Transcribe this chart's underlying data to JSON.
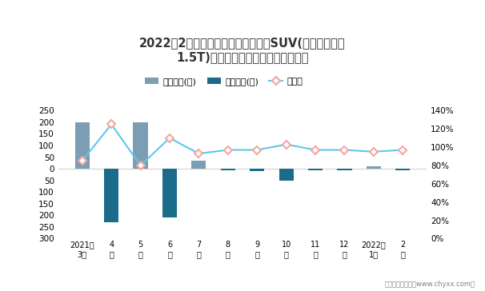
{
  "title": "2022年2月雪佛兰探界者旗下最畅销SUV(雪佛兰探界者\n1.5T)近一年库存情况及产销率统计图",
  "categories": [
    "2021年\n3月",
    "4\n月",
    "5\n月",
    "6\n月",
    "7\n月",
    "8\n月",
    "9\n月",
    "10\n月",
    "11\n月",
    "12\n月",
    "2022年\n1月",
    "2\n月"
  ],
  "jiyal_values": [
    200,
    0,
    200,
    0,
    35,
    0,
    0,
    0,
    0,
    0,
    10,
    0
  ],
  "qingcang_values": [
    0,
    -230,
    0,
    -210,
    0,
    -5,
    -10,
    -50,
    -5,
    -5,
    0,
    -5
  ],
  "chanxiao_rate": [
    0.85,
    1.25,
    0.8,
    1.1,
    0.93,
    0.97,
    0.97,
    1.03,
    0.97,
    0.97,
    0.95,
    0.97
  ],
  "bar_color_jiyal": "#7B9EB5",
  "bar_color_qingcang": "#1B6B8A",
  "line_color": "#60C8E8",
  "marker_color": "#F4A6A0",
  "background_color": "#FFFFFF",
  "ylim_left": [
    -300,
    250
  ],
  "ylim_right": [
    0.0,
    1.4
  ],
  "yticks_left": [
    -300,
    -250,
    -200,
    -150,
    -100,
    -50,
    0,
    50,
    100,
    150,
    200,
    250
  ],
  "ytick_labels_left": [
    "300",
    "250",
    "200",
    "150",
    "100",
    "50",
    "0",
    "50",
    "100",
    "150",
    "200",
    "250"
  ],
  "yticks_right": [
    0.0,
    0.2,
    0.4,
    0.6,
    0.8,
    1.0,
    1.2,
    1.4
  ],
  "ytick_labels_right": [
    "0%",
    "20%",
    "40%",
    "60%",
    "80%",
    "100%",
    "120%",
    "140%"
  ],
  "legend_labels": [
    "积压库存(辆)",
    "清仓库存(辆)",
    "产销率"
  ],
  "footnote": "制图：智研咨询（www.chyxx.com）"
}
